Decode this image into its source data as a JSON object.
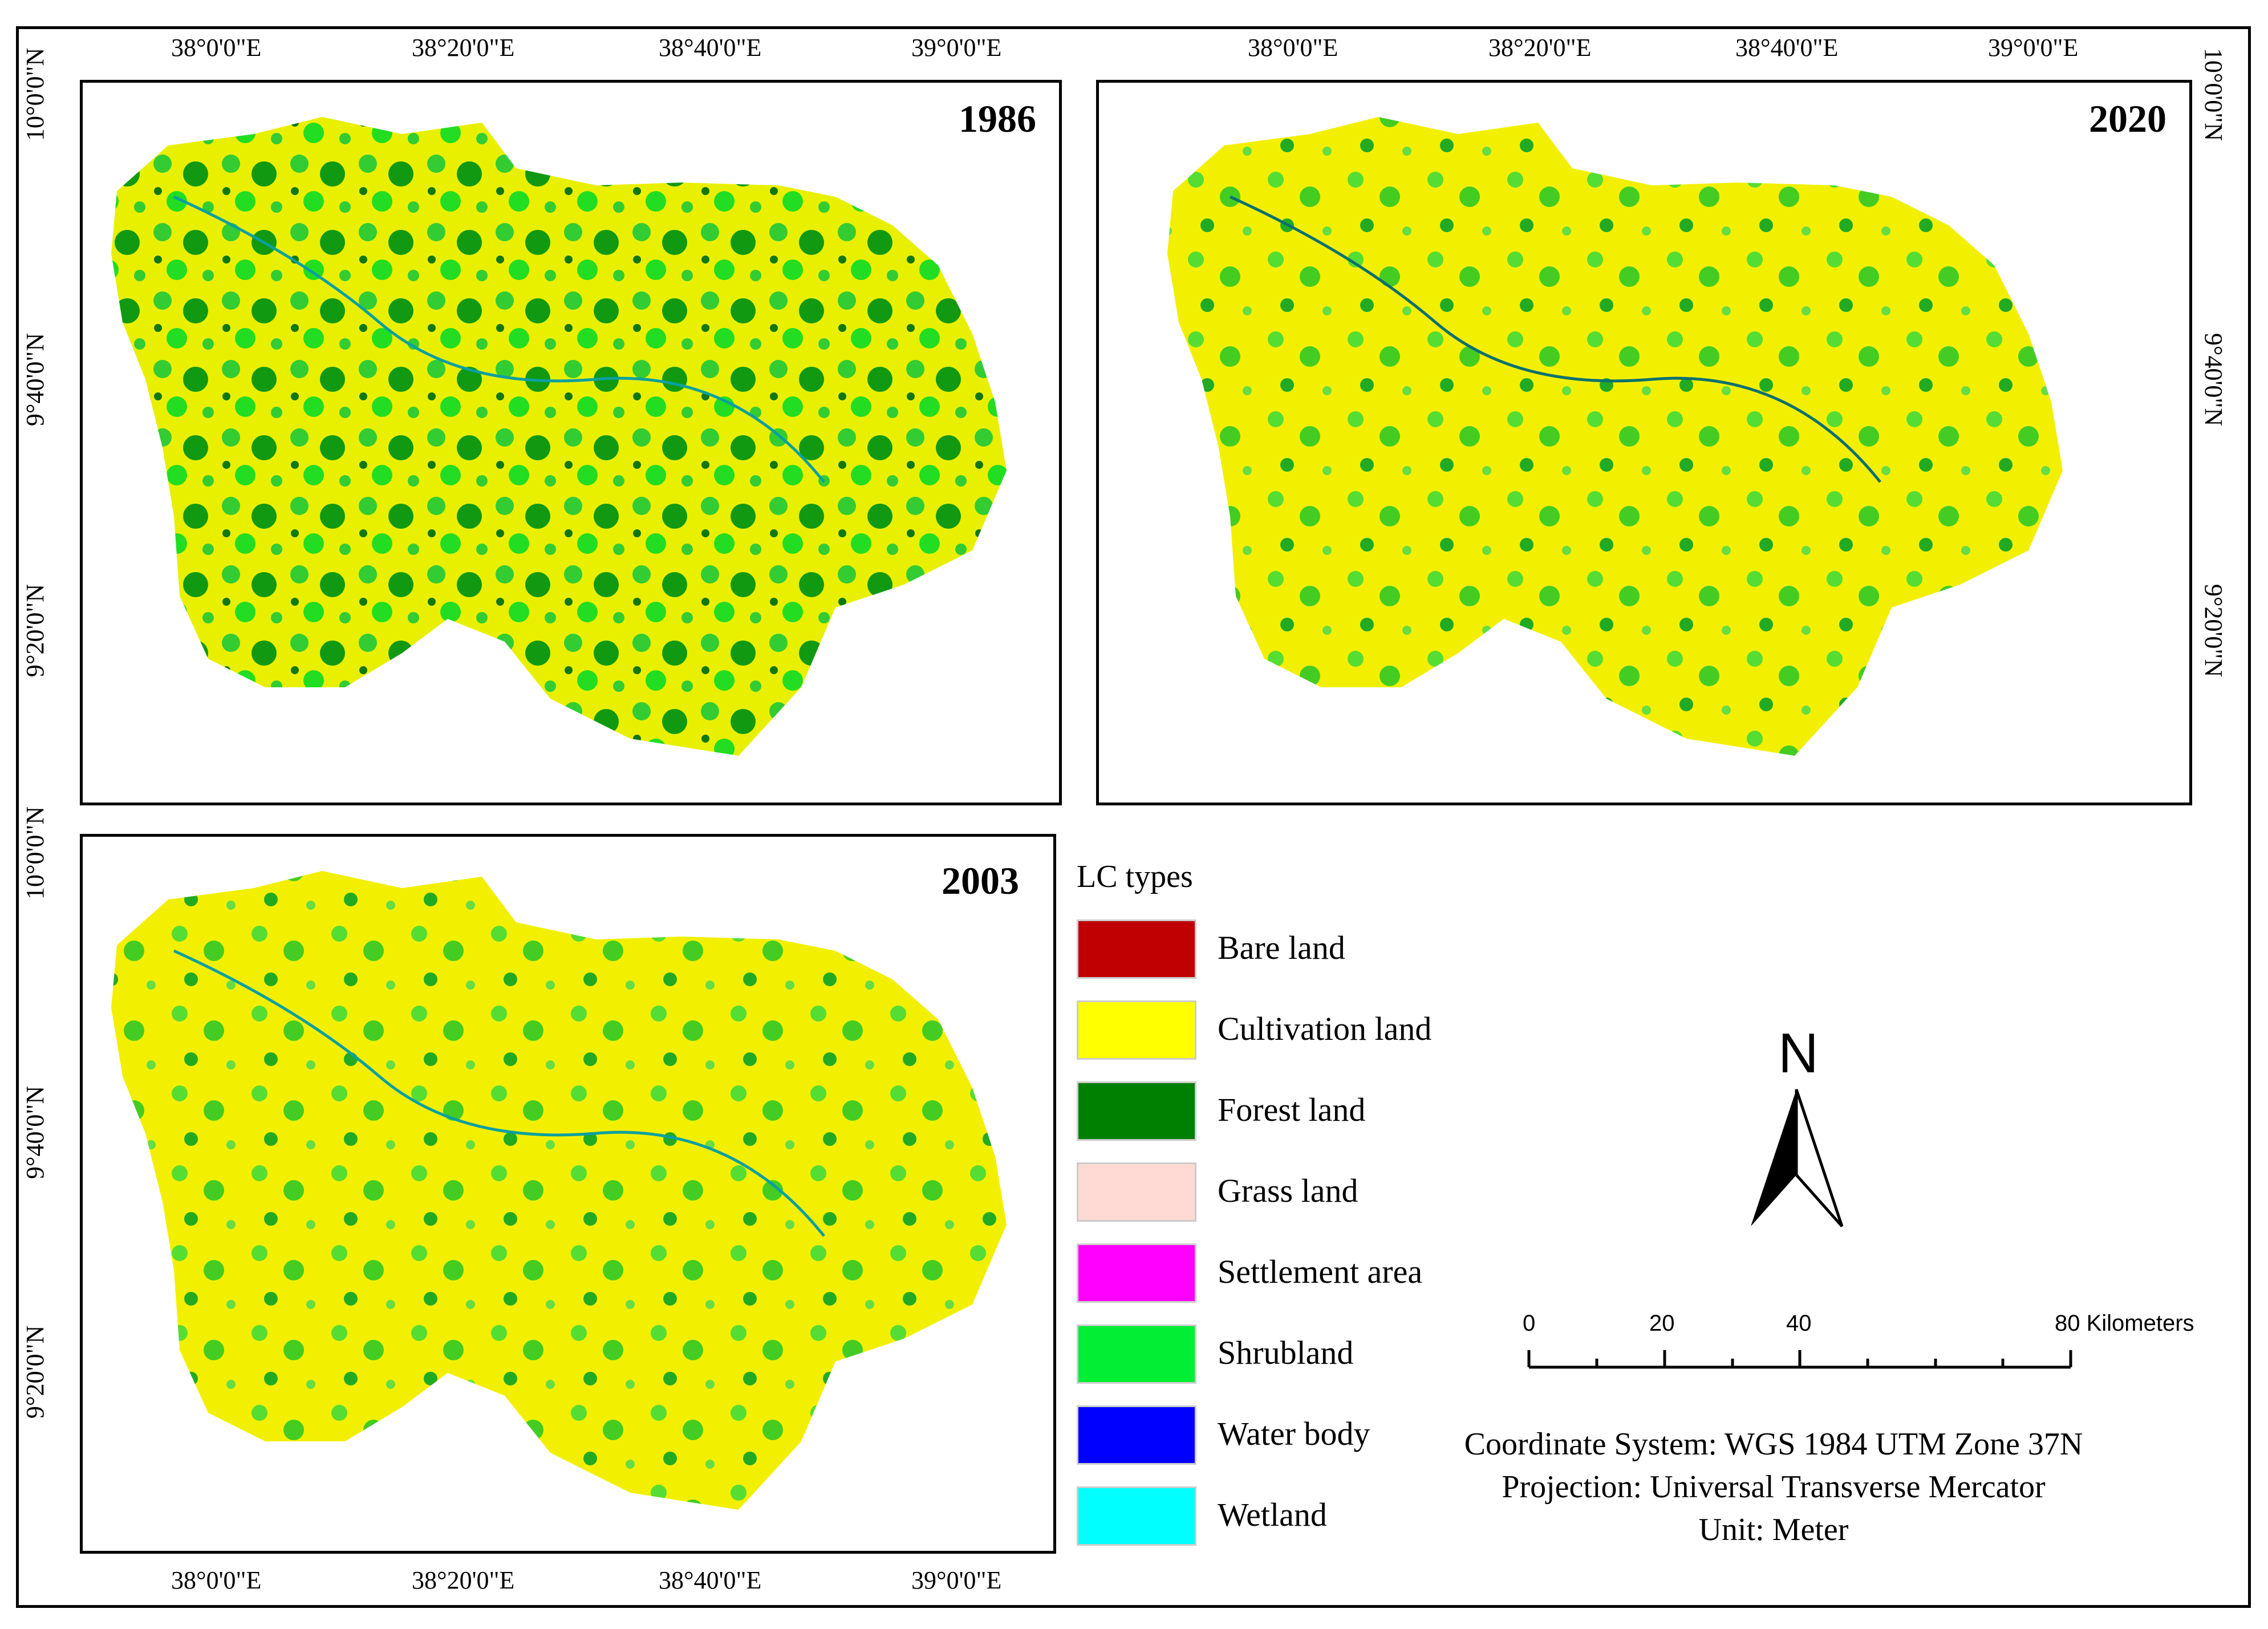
{
  "maps": [
    {
      "year": "1986"
    },
    {
      "year": "2020"
    },
    {
      "year": "2003"
    }
  ],
  "axis": {
    "lon_labels": [
      "38°0'0\"E",
      "38°20'0\"E",
      "38°40'0\"E",
      "39°0'0\"E"
    ],
    "lat_labels": [
      "10°0'0\"N",
      "9°40'0\"N",
      "9°20'0\"N"
    ]
  },
  "legend": {
    "title": "LC types",
    "items": [
      {
        "label": "Bare land",
        "color": "#c00000"
      },
      {
        "label": "Cultivation land",
        "color": "#ffff00"
      },
      {
        "label": "Forest land",
        "color": "#008000"
      },
      {
        "label": "Grass land",
        "color": "#ffd9d3"
      },
      {
        "label": "Settlement area",
        "color": "#ff00ff"
      },
      {
        "label": "Shrubland",
        "color": "#00ee33"
      },
      {
        "label": "Water body",
        "color": "#0000ff"
      },
      {
        "label": "Wetland",
        "color": "#00ffff"
      }
    ]
  },
  "north_arrow": {
    "label": "N"
  },
  "scale_bar": {
    "labels": [
      "0",
      "20",
      "40",
      "80 Kilometers"
    ]
  },
  "info": {
    "coordinate_system": "Coordinate System: WGS 1984 UTM Zone 37N",
    "projection": "Projection: Universal Transverse Mercator",
    "unit": "Unit: Meter"
  }
}
